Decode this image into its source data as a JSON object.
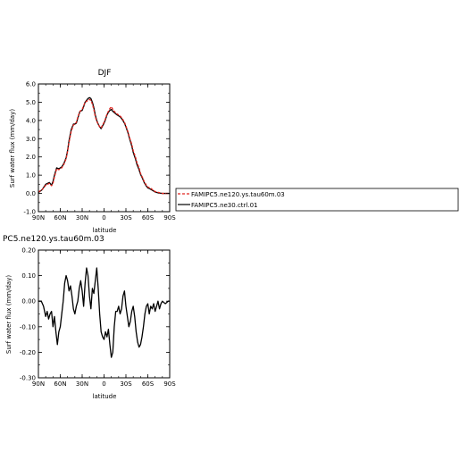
{
  "chart_data": [
    {
      "type": "line",
      "title": "DJF",
      "xlabel": "latitude",
      "ylabel": "Surf water flux (mm/day)",
      "x_tick_labels": [
        "90N",
        "60N",
        "30N",
        "0",
        "30S",
        "60S",
        "90S"
      ],
      "x_tick_values": [
        90,
        60,
        30,
        0,
        -30,
        -60,
        -90
      ],
      "xlim": [
        90,
        -90
      ],
      "y_tick_labels": [
        "-1.0",
        "0.0",
        "1.0",
        "2.0",
        "3.0",
        "4.0",
        "5.0",
        "6.0"
      ],
      "ylim": [
        -1.0,
        6.0
      ],
      "legend_placement": "right",
      "colors": {
        "red": "#e0231d",
        "black": "#000000"
      },
      "series": [
        {
          "name": "FAMIPC5.ne120.ys.tau60m.03",
          "color": "#e0231d",
          "style": "dashed",
          "x": [
            90,
            85,
            80,
            75,
            72,
            70,
            68,
            65,
            62,
            60,
            58,
            55,
            52,
            50,
            48,
            45,
            42,
            40,
            38,
            35,
            33,
            30,
            28,
            26,
            24,
            22,
            20,
            18,
            16,
            14,
            12,
            10,
            8,
            6,
            4,
            2,
            0,
            -2,
            -4,
            -6,
            -8,
            -10,
            -12,
            -15,
            -18,
            -20,
            -22,
            -25,
            -28,
            -30,
            -33,
            -35,
            -38,
            -40,
            -43,
            -45,
            -48,
            -50,
            -53,
            -55,
            -58,
            -60,
            -63,
            -65,
            -70,
            -75,
            -80,
            -85,
            -90
          ],
          "y": [
            0.08,
            0.2,
            0.45,
            0.55,
            0.42,
            0.55,
            0.9,
            1.35,
            1.3,
            1.35,
            1.4,
            1.6,
            1.9,
            2.3,
            2.8,
            3.4,
            3.75,
            3.8,
            3.9,
            4.3,
            4.5,
            4.6,
            4.8,
            5.0,
            5.05,
            5.1,
            5.15,
            5.1,
            4.9,
            4.6,
            4.2,
            3.95,
            3.8,
            3.65,
            3.6,
            3.75,
            3.9,
            4.1,
            4.35,
            4.5,
            4.65,
            4.75,
            4.6,
            4.45,
            4.35,
            4.3,
            4.25,
            4.1,
            3.9,
            3.7,
            3.35,
            3.05,
            2.7,
            2.35,
            2.0,
            1.7,
            1.4,
            1.1,
            0.85,
            0.65,
            0.45,
            0.35,
            0.3,
            0.25,
            0.1,
            0.05,
            0.0,
            0.0,
            0.0
          ]
        },
        {
          "name": "FAMIPC5.ne30.ctrl.01",
          "color": "#000000",
          "style": "solid",
          "x": [
            90,
            85,
            80,
            75,
            72,
            70,
            68,
            65,
            62,
            60,
            58,
            55,
            52,
            50,
            48,
            45,
            42,
            40,
            38,
            35,
            33,
            30,
            28,
            26,
            24,
            22,
            20,
            18,
            16,
            14,
            12,
            10,
            8,
            6,
            4,
            2,
            0,
            -2,
            -4,
            -6,
            -8,
            -10,
            -12,
            -15,
            -18,
            -20,
            -22,
            -25,
            -28,
            -30,
            -33,
            -35,
            -38,
            -40,
            -43,
            -45,
            -48,
            -50,
            -53,
            -55,
            -58,
            -60,
            -63,
            -65,
            -70,
            -75,
            -80,
            -85,
            -90
          ],
          "y": [
            0.05,
            0.2,
            0.5,
            0.6,
            0.45,
            0.65,
            1.0,
            1.4,
            1.35,
            1.4,
            1.45,
            1.65,
            1.95,
            2.35,
            2.9,
            3.5,
            3.8,
            3.8,
            3.85,
            4.25,
            4.5,
            4.55,
            4.75,
            5.0,
            5.1,
            5.2,
            5.25,
            5.2,
            5.0,
            4.7,
            4.3,
            4.0,
            3.8,
            3.65,
            3.55,
            3.7,
            3.85,
            4.05,
            4.3,
            4.45,
            4.55,
            4.6,
            4.5,
            4.4,
            4.3,
            4.25,
            4.2,
            4.05,
            3.85,
            3.65,
            3.3,
            3.0,
            2.6,
            2.25,
            1.9,
            1.6,
            1.3,
            1.05,
            0.8,
            0.6,
            0.4,
            0.3,
            0.25,
            0.2,
            0.08,
            0.02,
            0.0,
            0.0,
            0.0
          ]
        }
      ]
    },
    {
      "type": "line",
      "title": "PC5.ne120.ys.tau60m.03",
      "xlabel": "latitude",
      "ylabel": "Surf water flux (mm/day)",
      "x_tick_labels": [
        "90N",
        "60N",
        "30N",
        "0",
        "30S",
        "60S",
        "90S"
      ],
      "x_tick_values": [
        90,
        60,
        30,
        0,
        -30,
        -60,
        -90
      ],
      "xlim": [
        90,
        -90
      ],
      "y_tick_labels": [
        "-0.30",
        "-0.20",
        "-0.10",
        "0.00",
        "0.10",
        "0.20"
      ],
      "ylim": [
        -0.3,
        0.2
      ],
      "series": [
        {
          "name": "",
          "color": "#000000",
          "style": "solid",
          "x": [
            90,
            86,
            83,
            80,
            78,
            76,
            74,
            72,
            70,
            68,
            66,
            64,
            62,
            60,
            58,
            56,
            54,
            52,
            50,
            48,
            46,
            44,
            42,
            40,
            38,
            36,
            34,
            32,
            30,
            28,
            26,
            24,
            22,
            20,
            18,
            16,
            14,
            12,
            10,
            8,
            6,
            4,
            2,
            0,
            -2,
            -4,
            -6,
            -8,
            -10,
            -12,
            -14,
            -16,
            -18,
            -20,
            -22,
            -24,
            -26,
            -28,
            -30,
            -32,
            -34,
            -36,
            -38,
            -40,
            -42,
            -44,
            -46,
            -48,
            -50,
            -52,
            -54,
            -56,
            -58,
            -60,
            -62,
            -64,
            -66,
            -68,
            -70,
            -72,
            -74,
            -76,
            -78,
            -80,
            -84,
            -88,
            -90
          ],
          "y": [
            0.0,
            0.0,
            -0.02,
            -0.06,
            -0.04,
            -0.07,
            -0.05,
            -0.04,
            -0.1,
            -0.06,
            -0.12,
            -0.17,
            -0.12,
            -0.1,
            -0.05,
            0.0,
            0.07,
            0.1,
            0.08,
            0.04,
            0.06,
            0.02,
            -0.03,
            -0.05,
            -0.02,
            0.0,
            0.05,
            0.08,
            0.04,
            -0.02,
            0.07,
            0.13,
            0.1,
            0.02,
            -0.03,
            0.05,
            0.03,
            0.08,
            0.13,
            0.05,
            -0.05,
            -0.12,
            -0.14,
            -0.15,
            -0.12,
            -0.14,
            -0.11,
            -0.17,
            -0.22,
            -0.2,
            -0.1,
            -0.04,
            -0.04,
            -0.02,
            -0.05,
            -0.03,
            0.02,
            0.04,
            -0.02,
            -0.06,
            -0.1,
            -0.08,
            -0.04,
            -0.02,
            -0.06,
            -0.12,
            -0.16,
            -0.18,
            -0.17,
            -0.14,
            -0.1,
            -0.05,
            -0.02,
            -0.01,
            -0.05,
            -0.02,
            -0.03,
            -0.01,
            -0.04,
            -0.02,
            0.0,
            -0.03,
            -0.01,
            0.0,
            -0.01,
            0.0,
            0.0
          ]
        }
      ]
    }
  ]
}
